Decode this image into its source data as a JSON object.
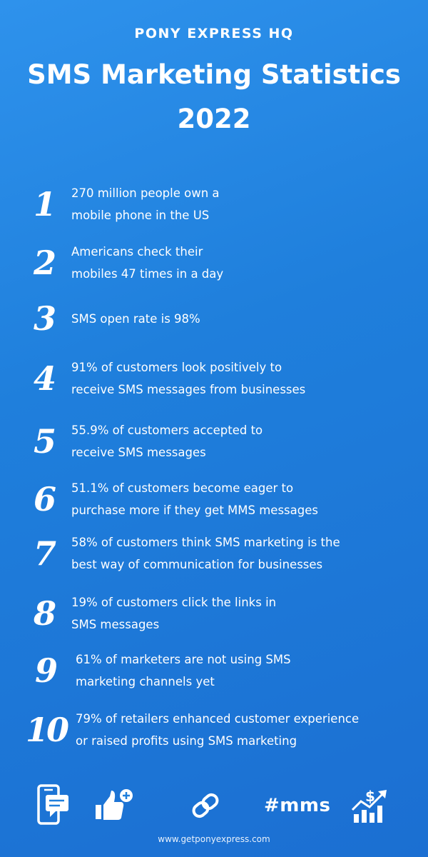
{
  "brand": "PONY EXPRESS HQ",
  "title_line1": "SMS Marketing Statistics",
  "title_line2": "2022",
  "stats": [
    {
      "number": "1",
      "line1": "270 million people own a",
      "line2": "mobile phone in the US"
    },
    {
      "number": "2",
      "line1": "Americans check their",
      "line2": "mobiles 47 times in a day"
    },
    {
      "number": "3",
      "line1": "SMS open rate is 98%",
      "line2": ""
    },
    {
      "number": "4",
      "line1": "91% of customers look positively to",
      "line2": "receive SMS messages from businesses"
    },
    {
      "number": "5",
      "line1": "55.9% of customers accepted to",
      "line2": "receive SMS messages"
    },
    {
      "number": "6",
      "line1": "51.1% of customers become eager to",
      "line2": "purchase more if they get MMS messages"
    },
    {
      "number": "7",
      "line1": "58% of customers think SMS marketing is the",
      "line2": "best way of communication for businesses"
    },
    {
      "number": "8",
      "line1": "19% of customers click the links in",
      "line2": "SMS messages"
    },
    {
      "number": "9",
      "line1": "61% of marketers are not using SMS",
      "line2": "marketing channels yet"
    },
    {
      "number": "10",
      "line1": "79% of retailers enhanced customer experience",
      "line2": "or raised profits using SMS marketing"
    }
  ],
  "footer": {
    "icons": [
      "mobile-message-icon",
      "thumbs-up-plus-icon",
      "link-icon",
      "growth-chart-dollar-icon"
    ],
    "hashtag": "#mms",
    "url": "www.getponyexpress.com"
  },
  "colors": {
    "background_top": "#2e92ec",
    "background_bottom": "#1b6fd2",
    "text": "#ffffff"
  }
}
